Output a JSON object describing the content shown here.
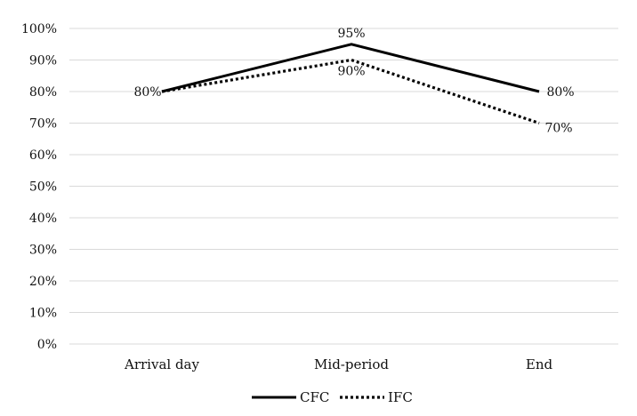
{
  "chart_data": {
    "type": "line",
    "categories": [
      "Arrival day",
      "Mid-period",
      "End"
    ],
    "series": [
      {
        "name": "CFC",
        "values": [
          80,
          95,
          80
        ],
        "labels": [
          "80%",
          "95%",
          "80%"
        ],
        "style": "solid",
        "color": "#000000"
      },
      {
        "name": "IFC",
        "values": [
          80,
          90,
          70
        ],
        "labels": [
          "",
          "90%",
          "70%"
        ],
        "style": "dotted",
        "color": "#000000"
      }
    ],
    "y_ticks": [
      "0%",
      "10%",
      "20%",
      "30%",
      "40%",
      "50%",
      "60%",
      "70%",
      "80%",
      "90%",
      "100%"
    ],
    "ylim": [
      0,
      100
    ],
    "grid": true,
    "legend_position": "bottom"
  }
}
